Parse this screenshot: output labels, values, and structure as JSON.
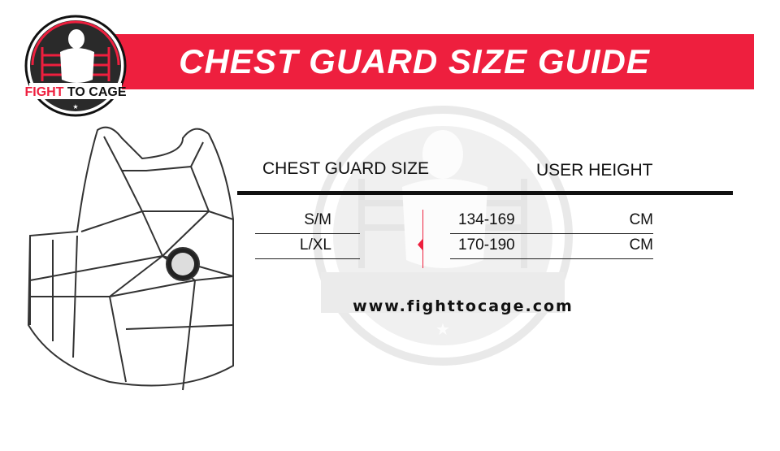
{
  "header": {
    "title": "CHEST GUARD SIZE GUIDE",
    "brand_color": "#ee1f3e"
  },
  "logo": {
    "text": "FIGHT TO CAGE"
  },
  "table": {
    "columns": [
      "CHEST GUARD SIZE",
      "USER HEIGHT"
    ],
    "rows": [
      {
        "size": "S/M",
        "height": "134-169",
        "unit": "CM"
      },
      {
        "size": "L/XL",
        "height": "170-190",
        "unit": "CM"
      }
    ]
  },
  "footer": {
    "url": "www.fighttocage.com"
  }
}
